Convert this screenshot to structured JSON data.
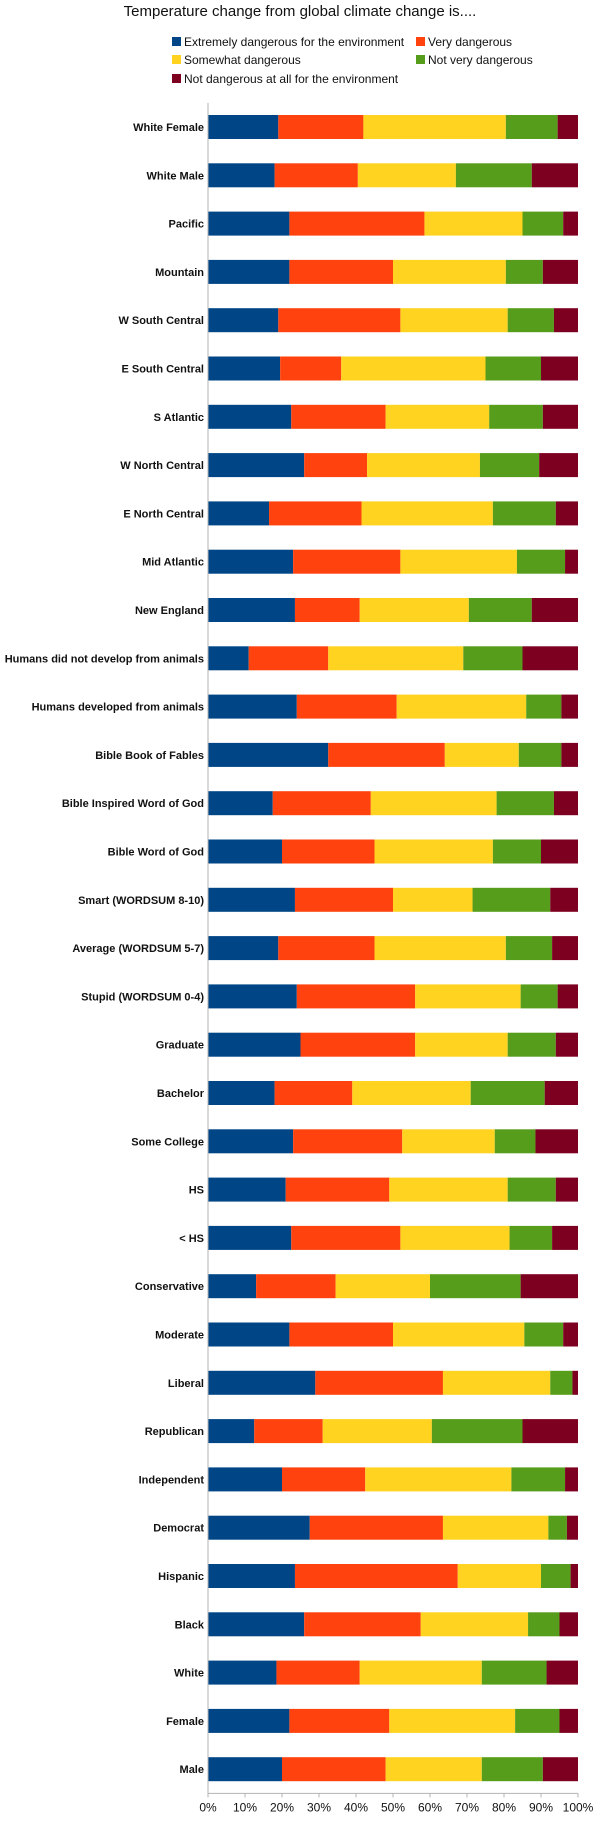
{
  "chart_data": {
    "type": "bar",
    "stacked": true,
    "orientation": "horizontal",
    "title": "Temperature change from global climate change is....",
    "xlabel": "",
    "ylabel": "",
    "xlim": [
      0,
      100
    ],
    "grid": false,
    "legend_position": "top",
    "x_tick_labels": [
      "0%",
      "10%",
      "20%",
      "30%",
      "40%",
      "50%",
      "60%",
      "70%",
      "80%",
      "90%",
      "100%"
    ],
    "categories": [
      "White Female",
      "White Male",
      "Pacific",
      "Mountain",
      "W South Central",
      "E South Central",
      "S Atlantic",
      "W North Central",
      "E North Central",
      "Mid Atlantic",
      "New England",
      "Humans did not develop from animals",
      "Humans developed from animals",
      "Bible Book of Fables",
      "Bible Inspired Word of God",
      "Bible Word of God",
      "Smart (WORDSUM 8-10)",
      "Average (WORDSUM 5-7)",
      "Stupid (WORDSUM 0-4)",
      "Graduate",
      "Bachelor",
      "Some College",
      "HS",
      "< HS",
      "Conservative",
      "Moderate",
      "Liberal",
      "Republican",
      "Independent",
      "Democrat",
      "Hispanic",
      "Black",
      "White",
      "Female",
      "Male"
    ],
    "series": [
      {
        "name": "Extremely dangerous for the environment",
        "color": "#004586",
        "values": [
          19,
          18,
          22,
          22,
          19,
          19.5,
          22.5,
          26,
          16.5,
          23,
          23.5,
          11,
          24,
          32.5,
          17.5,
          20,
          23.5,
          19,
          24,
          25,
          18,
          23,
          21,
          22.5,
          13,
          22,
          29,
          12.5,
          20,
          27.5,
          23.5,
          26,
          18.5,
          22,
          20
        ]
      },
      {
        "name": "Very dangerous",
        "color": "#ff420e",
        "values": [
          23,
          22.5,
          36.5,
          28,
          33,
          16.5,
          25.5,
          17,
          25,
          29,
          17.5,
          21.5,
          27,
          31.5,
          26.5,
          25,
          26.5,
          26,
          32,
          31,
          21,
          29.5,
          28,
          29.5,
          21.5,
          28,
          34.5,
          18.5,
          22.5,
          36,
          44,
          31.5,
          22.5,
          27,
          28
        ]
      },
      {
        "name": "Somewhat dangerous",
        "color": "#ffd320",
        "values": [
          38.5,
          26.5,
          26.5,
          30.5,
          29,
          39,
          28,
          30.5,
          35.5,
          31.5,
          29.5,
          36.5,
          35,
          20,
          34,
          32,
          21.5,
          35.5,
          28.5,
          25,
          32,
          25,
          32,
          29.5,
          25.5,
          35.5,
          29,
          29.5,
          39.5,
          28.5,
          22.5,
          29,
          33,
          34,
          26
        ]
      },
      {
        "name": "Not very dangerous",
        "color": "#579d1c",
        "values": [
          14,
          20.5,
          11,
          10,
          12.5,
          15,
          14.5,
          16,
          17,
          13,
          17,
          16,
          9.5,
          11.5,
          15.5,
          13,
          21,
          12.5,
          10,
          13,
          20,
          11,
          13,
          11.5,
          24.5,
          10.5,
          6,
          24.5,
          14.5,
          5,
          8,
          8.5,
          17.5,
          12,
          16.5
        ]
      },
      {
        "name": "Not dangerous at all for the environment",
        "color": "#7e0021",
        "values": [
          5.5,
          12.5,
          4,
          9.5,
          6.5,
          10,
          9.5,
          10.5,
          6,
          3.5,
          12.5,
          15,
          4.5,
          4.5,
          6.5,
          10,
          7.5,
          7,
          5.5,
          6,
          9,
          11.5,
          6,
          7,
          15.5,
          4,
          1.5,
          15,
          3.5,
          3,
          2,
          5,
          8.5,
          5,
          9.5
        ]
      }
    ]
  }
}
